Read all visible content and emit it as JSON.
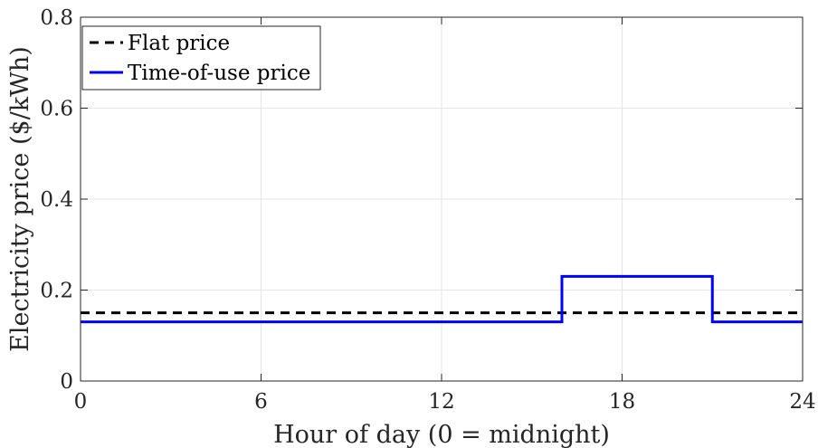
{
  "chart_data": {
    "type": "line",
    "title": "",
    "xlabel": "Hour of day (0 = midnight)",
    "ylabel": "Electricity price ($/kWh)",
    "xlim": [
      0,
      24
    ],
    "ylim": [
      0,
      0.8
    ],
    "x_ticks": [
      0,
      6,
      12,
      18,
      24
    ],
    "x_tick_labels": [
      "0",
      "6",
      "12",
      "18",
      "24"
    ],
    "y_ticks": [
      0,
      0.2,
      0.4,
      0.6,
      0.8
    ],
    "y_tick_labels": [
      "0",
      "0.2",
      "0.4",
      "0.6",
      "0.8"
    ],
    "grid": true,
    "legend_position": "top-left",
    "series": [
      {
        "name": "Flat price",
        "color": "#000000",
        "style": "dashed",
        "x": [
          0,
          24
        ],
        "y": [
          0.15,
          0.15
        ]
      },
      {
        "name": "Time-of-use price",
        "color": "#0000ff",
        "style": "solid",
        "x": [
          0,
          16,
          16,
          21,
          21,
          24
        ],
        "y": [
          0.13,
          0.13,
          0.23,
          0.23,
          0.13,
          0.13
        ]
      }
    ]
  }
}
